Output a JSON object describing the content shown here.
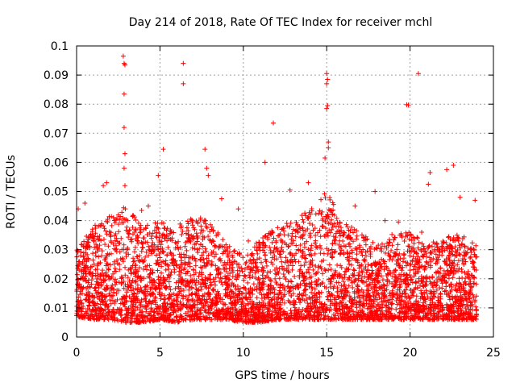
{
  "chart_data": {
    "type": "scatter",
    "title": "Day 214 of 2018, Rate Of TEC Index for receiver mchl",
    "xlabel": "GPS time / hours",
    "ylabel": "ROTI / TECUs",
    "xlim": [
      0,
      25
    ],
    "ylim": [
      0,
      0.1
    ],
    "x_ticks": [
      0,
      5,
      10,
      15,
      20,
      25
    ],
    "x_tick_labels": [
      "0",
      "5",
      "10",
      "15",
      "20",
      "25"
    ],
    "y_ticks": [
      0,
      0.01,
      0.02,
      0.03,
      0.04,
      0.05,
      0.06,
      0.07,
      0.08,
      0.09,
      0.1
    ],
    "y_tick_labels": [
      "0",
      "0.01",
      "0.02",
      "0.03",
      "0.04",
      "0.05",
      "0.06",
      "0.07",
      "0.08",
      "0.09",
      "0.1"
    ],
    "grid": true,
    "marker": "+",
    "marker_color": "#ff0000",
    "series": [
      {
        "name": "ROTI",
        "points": [
          [
            2.8,
            0.0965
          ],
          [
            2.85,
            0.094
          ],
          [
            2.9,
            0.0935
          ],
          [
            2.85,
            0.0835
          ],
          [
            2.85,
            0.072
          ],
          [
            2.9,
            0.063
          ],
          [
            2.85,
            0.058
          ],
          [
            2.9,
            0.052
          ],
          [
            6.4,
            0.094
          ],
          [
            6.4,
            0.087
          ],
          [
            5.2,
            0.0645
          ],
          [
            7.7,
            0.0645
          ],
          [
            11.8,
            0.0735
          ],
          [
            11.3,
            0.06
          ],
          [
            15.0,
            0.0905
          ],
          [
            15.05,
            0.0885
          ],
          [
            15.0,
            0.087
          ],
          [
            15.05,
            0.0795
          ],
          [
            15.0,
            0.0785
          ],
          [
            20.5,
            0.0905
          ],
          [
            19.8,
            0.0798
          ],
          [
            19.9,
            0.0797
          ],
          [
            15.1,
            0.067
          ],
          [
            15.1,
            0.065
          ],
          [
            14.9,
            0.0615
          ],
          [
            7.8,
            0.058
          ],
          [
            7.9,
            0.0555
          ],
          [
            4.9,
            0.0555
          ],
          [
            21.2,
            0.0565
          ],
          [
            22.6,
            0.059
          ],
          [
            22.2,
            0.0575
          ],
          [
            1.8,
            0.053
          ],
          [
            1.6,
            0.052
          ],
          [
            13.9,
            0.053
          ],
          [
            12.8,
            0.0505
          ],
          [
            17.9,
            0.05
          ],
          [
            21.1,
            0.0525
          ],
          [
            23.0,
            0.048
          ],
          [
            8.7,
            0.0475
          ],
          [
            9.7,
            0.044
          ],
          [
            0.1,
            0.044
          ],
          [
            0.5,
            0.046
          ],
          [
            3.9,
            0.0435
          ],
          [
            4.3,
            0.045
          ],
          [
            16.7,
            0.045
          ],
          [
            23.9,
            0.047
          ],
          [
            18.5,
            0.04
          ],
          [
            19.3,
            0.0395
          ],
          [
            20.7,
            0.036
          ],
          [
            10.3,
            0.033
          ]
        ]
      }
    ],
    "density_envelope": {
      "x": [
        0,
        1,
        2,
        3,
        4,
        5,
        6,
        7,
        8,
        9,
        10,
        11,
        12,
        13,
        14,
        15,
        16,
        17,
        18,
        19,
        20,
        21,
        22,
        23,
        24
      ],
      "upper": [
        0.03,
        0.038,
        0.042,
        0.045,
        0.038,
        0.04,
        0.038,
        0.042,
        0.04,
        0.032,
        0.028,
        0.034,
        0.038,
        0.04,
        0.044,
        0.05,
        0.04,
        0.036,
        0.032,
        0.036,
        0.036,
        0.032,
        0.034,
        0.036,
        0.032
      ],
      "lower": [
        0.007,
        0.006,
        0.006,
        0.005,
        0.005,
        0.006,
        0.005,
        0.006,
        0.006,
        0.006,
        0.005,
        0.005,
        0.006,
        0.006,
        0.006,
        0.006,
        0.006,
        0.006,
        0.006,
        0.006,
        0.006,
        0.006,
        0.006,
        0.006,
        0.006
      ]
    }
  }
}
